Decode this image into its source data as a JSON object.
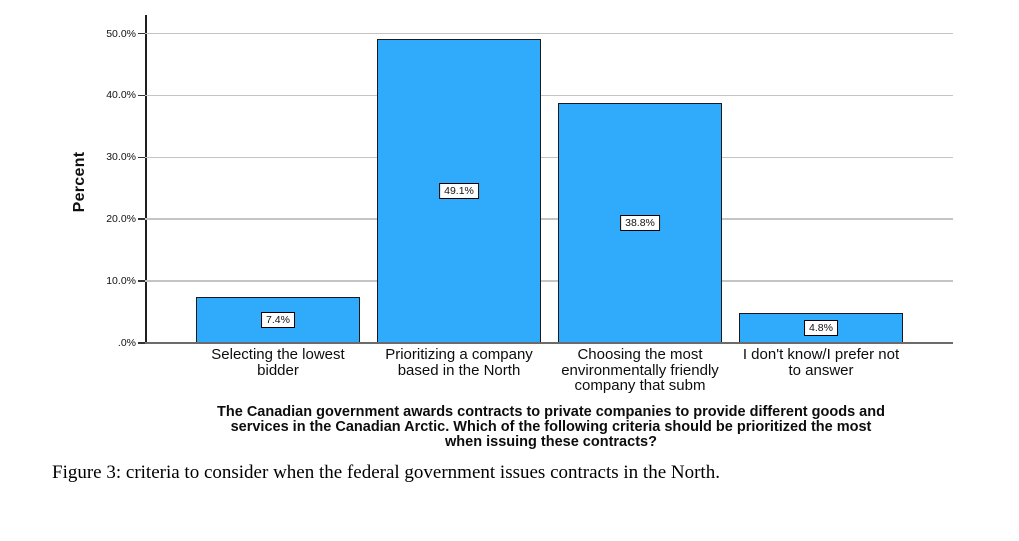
{
  "chart_data": {
    "type": "bar",
    "title": "",
    "ylabel": "Percent",
    "xlabel": "The Canadian government awards contracts to private companies to provide different goods and services in the Canadian Arctic. Which of the following criteria should be prioritized the most when issuing these contracts?",
    "xlabel_lines": [
      "The Canadian government awards contracts to private companies to provide different goods and",
      "services in the Canadian Arctic. Which of the following criteria should be prioritized the most",
      "when issuing these contracts?"
    ],
    "categories": [
      "Selecting the lowest bidder",
      "Prioritizing a company based in the North",
      "Choosing the most environmentally friendly company that subm",
      "I don't know/I prefer not to answer"
    ],
    "category_lines": [
      [
        "Selecting the lowest",
        "bidder"
      ],
      [
        "Prioritizing a company",
        "based in the North"
      ],
      [
        "Choosing the most",
        "environmentally friendly",
        "company that subm"
      ],
      [
        "I don't know/I prefer not",
        "to answer"
      ]
    ],
    "values": [
      7.4,
      49.1,
      38.8,
      4.8
    ],
    "value_labels": [
      "7.4%",
      "49.1%",
      "38.8%",
      "4.8%"
    ],
    "yticks": [
      {
        "value": 0,
        "label": ".0%"
      },
      {
        "value": 10,
        "label": "10.0%"
      },
      {
        "value": 20,
        "label": "20.0%"
      },
      {
        "value": 30,
        "label": "30.0%"
      },
      {
        "value": 40,
        "label": "40.0%"
      },
      {
        "value": 50,
        "label": "50.0%"
      }
    ],
    "ylim": [
      0,
      53
    ],
    "grid": "horizontal",
    "legend": "none",
    "bar_color": "#30AAFA",
    "bar_border_color": "#1a1a1a"
  },
  "caption": "Figure 3: criteria to consider when the federal government issues contracts in the North."
}
